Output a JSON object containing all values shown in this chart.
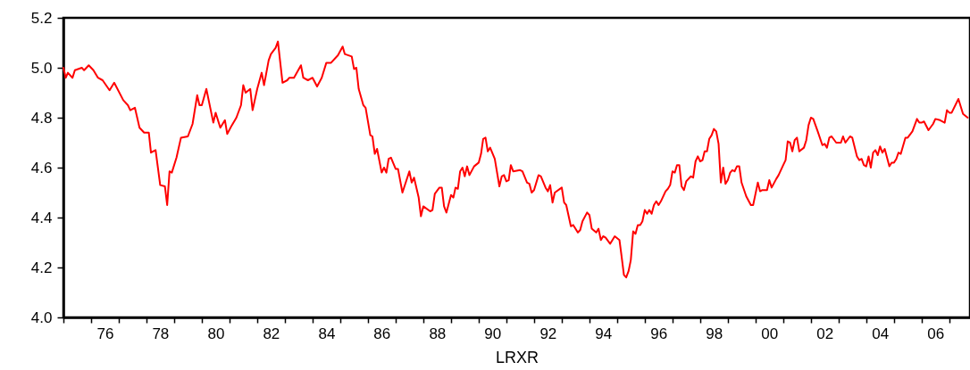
{
  "chart_data": {
    "type": "line",
    "xlabel": "LRXR",
    "grid": false,
    "marker": "none",
    "line_style": "solid",
    "xlim": [
      "1975-01",
      "2007-10"
    ],
    "ylim": [
      4.0,
      5.2
    ],
    "yticks": [
      {
        "value": 4.0,
        "label": "4.0"
      },
      4.2,
      4.4,
      4.6,
      4.8,
      {
        "value": 5.0,
        "label": "5.0"
      },
      5.2
    ],
    "xticks": [
      {
        "value": "1975-01",
        "label": null
      },
      {
        "value": "1976-01",
        "label": null
      },
      {
        "value": "1976-07",
        "label": "76"
      },
      {
        "value": "1977-01",
        "label": null
      },
      {
        "value": "1978-01",
        "label": null
      },
      {
        "value": "1978-07",
        "label": "78"
      },
      {
        "value": "1979-01",
        "label": null
      },
      {
        "value": "1980-01",
        "label": null
      },
      {
        "value": "1980-07",
        "label": "80"
      },
      {
        "value": "1981-01",
        "label": null
      },
      {
        "value": "1982-01",
        "label": null
      },
      {
        "value": "1982-07",
        "label": "82"
      },
      {
        "value": "1983-01",
        "label": null
      },
      {
        "value": "1984-01",
        "label": null
      },
      {
        "value": "1984-07",
        "label": "84"
      },
      {
        "value": "1985-01",
        "label": null
      },
      {
        "value": "1986-01",
        "label": null
      },
      {
        "value": "1986-07",
        "label": "86"
      },
      {
        "value": "1987-01",
        "label": null
      },
      {
        "value": "1988-01",
        "label": null
      },
      {
        "value": "1988-07",
        "label": "88"
      },
      {
        "value": "1989-01",
        "label": null
      },
      {
        "value": "1990-01",
        "label": null
      },
      {
        "value": "1990-07",
        "label": "90"
      },
      {
        "value": "1991-01",
        "label": null
      },
      {
        "value": "1992-01",
        "label": null
      },
      {
        "value": "1992-07",
        "label": "92"
      },
      {
        "value": "1993-01",
        "label": null
      },
      {
        "value": "1994-01",
        "label": null
      },
      {
        "value": "1994-07",
        "label": "94"
      },
      {
        "value": "1995-01",
        "label": null
      },
      {
        "value": "1996-01",
        "label": null
      },
      {
        "value": "1996-07",
        "label": "96"
      },
      {
        "value": "1997-01",
        "label": null
      },
      {
        "value": "1998-01",
        "label": null
      },
      {
        "value": "1998-07",
        "label": "98"
      },
      {
        "value": "1999-01",
        "label": null
      },
      {
        "value": "2000-01",
        "label": null
      },
      {
        "value": "2000-07",
        "label": "00"
      },
      {
        "value": "2001-01",
        "label": null
      },
      {
        "value": "2002-01",
        "label": null
      },
      {
        "value": "2002-07",
        "label": "02"
      },
      {
        "value": "2003-01",
        "label": null
      },
      {
        "value": "2004-01",
        "label": null
      },
      {
        "value": "2004-07",
        "label": "04"
      },
      {
        "value": "2005-01",
        "label": null
      },
      {
        "value": "2006-01",
        "label": null
      },
      {
        "value": "2006-07",
        "label": "06"
      },
      {
        "value": "2007-01",
        "label": null
      }
    ],
    "x": [
      "1975-01",
      "1975-02",
      "1975-03",
      "1975-05",
      "1975-06",
      "1975-09",
      "1975-10",
      "1975-12",
      "1976-02",
      "1976-04",
      "1976-06",
      "1976-09",
      "1976-11",
      "1977-03",
      "1977-05",
      "1977-06",
      "1977-08",
      "1977-10",
      "1977-12",
      "1978-02",
      "1978-03",
      "1978-05",
      "1978-07",
      "1978-09",
      "1978-10",
      "1978-11",
      "1978-12",
      "1979-02",
      "1979-04",
      "1979-07",
      "1979-09",
      "1979-11",
      "1979-12",
      "1980-01",
      "1980-03",
      "1980-06",
      "1980-07",
      "1980-09",
      "1980-11",
      "1980-12",
      "1981-02",
      "1981-04",
      "1981-06",
      "1981-07",
      "1981-08",
      "1981-10",
      "1981-11",
      "1982-01",
      "1982-03",
      "1982-04",
      "1982-06",
      "1982-07",
      "1982-09",
      "1982-10",
      "1982-12",
      "1983-02",
      "1983-03",
      "1983-05",
      "1983-08",
      "1983-09",
      "1983-11",
      "1984-01",
      "1984-03",
      "1984-05",
      "1984-07",
      "1984-09",
      "1984-12",
      "1985-02",
      "1985-03",
      "1985-06",
      "1985-07",
      "1985-08",
      "1985-09",
      "1985-11",
      "1985-12",
      "1986-02",
      "1986-03",
      "1986-04",
      "1986-05",
      "1986-07",
      "1986-08",
      "1986-09",
      "1986-10",
      "1986-11",
      "1987-01",
      "1987-02",
      "1987-04",
      "1987-07",
      "1987-08",
      "1987-09",
      "1987-11",
      "1987-12",
      "1988-01",
      "1988-04",
      "1988-05",
      "1988-06",
      "1988-08",
      "1988-09",
      "1988-10",
      "1988-11",
      "1989-01",
      "1989-02",
      "1989-03",
      "1989-04",
      "1989-05",
      "1989-06",
      "1989-07",
      "1989-08",
      "1989-09",
      "1989-11",
      "1990-01",
      "1990-02",
      "1990-03",
      "1990-04",
      "1990-05",
      "1990-06",
      "1990-08",
      "1990-10",
      "1990-11",
      "1990-12",
      "1991-01",
      "1991-02",
      "1991-03",
      "1991-04",
      "1991-07",
      "1991-08",
      "1991-10",
      "1991-11",
      "1991-12",
      "1992-01",
      "1992-03",
      "1992-04",
      "1992-06",
      "1992-07",
      "1992-08",
      "1992-09",
      "1992-10",
      "1993-01",
      "1993-02",
      "1993-03",
      "1993-05",
      "1993-06",
      "1993-08",
      "1993-09",
      "1993-10",
      "1993-12",
      "1994-01",
      "1994-02",
      "1994-04",
      "1994-05",
      "1994-06",
      "1994-07",
      "1994-08",
      "1994-10",
      "1994-12",
      "1995-02",
      "1995-03",
      "1995-04",
      "1995-05",
      "1995-06",
      "1995-07",
      "1995-08",
      "1995-09",
      "1995-10",
      "1995-11",
      "1995-12",
      "1996-01",
      "1996-02",
      "1996-03",
      "1996-04",
      "1996-05",
      "1996-06",
      "1996-07",
      "1996-08",
      "1996-10",
      "1996-11",
      "1996-12",
      "1997-01",
      "1997-02",
      "1997-03",
      "1997-04",
      "1997-05",
      "1997-06",
      "1997-07",
      "1997-09",
      "1997-10",
      "1997-11",
      "1997-12",
      "1998-01",
      "1998-02",
      "1998-03",
      "1998-04",
      "1998-05",
      "1998-06",
      "1998-07",
      "1998-08",
      "1998-09",
      "1998-10",
      "1998-11",
      "1998-12",
      "1999-01",
      "1999-02",
      "1999-03",
      "1999-04",
      "1999-05",
      "1999-06",
      "1999-07",
      "1999-09",
      "1999-11",
      "1999-12",
      "2000-01",
      "2000-02",
      "2000-03",
      "2000-04",
      "2000-06",
      "2000-07",
      "2000-08",
      "2000-10",
      "2000-11",
      "2001-01",
      "2001-02",
      "2001-03",
      "2001-04",
      "2001-05",
      "2001-06",
      "2001-07",
      "2001-08",
      "2001-10",
      "2001-11",
      "2001-12",
      "2002-01",
      "2002-02",
      "2002-04",
      "2002-06",
      "2002-07",
      "2002-08",
      "2002-09",
      "2002-10",
      "2002-12",
      "2003-02",
      "2003-03",
      "2003-04",
      "2003-06",
      "2003-07",
      "2003-09",
      "2003-10",
      "2003-11",
      "2003-12",
      "2004-01",
      "2004-02",
      "2004-03",
      "2004-04",
      "2004-05",
      "2004-06",
      "2004-07",
      "2004-08",
      "2004-09",
      "2004-11",
      "2004-12",
      "2005-01",
      "2005-02",
      "2005-03",
      "2005-04",
      "2005-06",
      "2005-07",
      "2005-09",
      "2005-11",
      "2005-12",
      "2006-01",
      "2006-02",
      "2006-04",
      "2006-06",
      "2006-07",
      "2006-09",
      "2006-11",
      "2006-12",
      "2007-01",
      "2007-02",
      "2007-05",
      "2007-07",
      "2007-09"
    ],
    "series": [
      {
        "color": "#ff0000",
        "values": [
          5.0,
          4.96,
          4.98,
          4.96,
          4.99,
          5.0,
          4.99,
          5.01,
          4.99,
          4.96,
          4.95,
          4.91,
          4.94,
          4.87,
          4.85,
          4.83,
          4.84,
          4.76,
          4.74,
          4.74,
          4.66,
          4.67,
          4.53,
          4.525,
          4.45,
          4.585,
          4.58,
          4.64,
          4.72,
          4.725,
          4.775,
          4.89,
          4.85,
          4.85,
          4.915,
          4.78,
          4.82,
          4.76,
          4.79,
          4.735,
          4.77,
          4.8,
          4.85,
          4.93,
          4.9,
          4.915,
          4.83,
          4.915,
          4.98,
          4.93,
          5.03,
          5.055,
          5.08,
          5.105,
          4.94,
          4.95,
          4.96,
          4.96,
          5.01,
          4.96,
          4.95,
          4.96,
          4.925,
          4.96,
          5.02,
          5.02,
          5.05,
          5.085,
          5.055,
          5.045,
          4.995,
          5.0,
          4.915,
          4.85,
          4.84,
          4.73,
          4.725,
          4.655,
          4.675,
          4.58,
          4.6,
          4.58,
          4.635,
          4.64,
          4.595,
          4.595,
          4.5,
          4.585,
          4.54,
          4.56,
          4.48,
          4.405,
          4.445,
          4.425,
          4.43,
          4.495,
          4.52,
          4.52,
          4.445,
          4.42,
          4.49,
          4.48,
          4.52,
          4.515,
          4.585,
          4.6,
          4.565,
          4.605,
          4.57,
          4.605,
          4.62,
          4.655,
          4.715,
          4.72,
          4.665,
          4.68,
          4.635,
          4.525,
          4.565,
          4.57,
          4.545,
          4.55,
          4.61,
          4.585,
          4.59,
          4.585,
          4.54,
          4.535,
          4.5,
          4.51,
          4.57,
          4.565,
          4.52,
          4.505,
          4.53,
          4.46,
          4.5,
          4.52,
          4.46,
          4.45,
          4.365,
          4.37,
          4.34,
          4.35,
          4.385,
          4.42,
          4.41,
          4.355,
          4.34,
          4.355,
          4.31,
          4.325,
          4.32,
          4.295,
          4.325,
          4.31,
          4.245,
          4.17,
          4.16,
          4.185,
          4.23,
          4.345,
          4.335,
          4.37,
          4.37,
          4.385,
          4.43,
          4.415,
          4.43,
          4.415,
          4.45,
          4.465,
          4.45,
          4.465,
          4.505,
          4.515,
          4.53,
          4.585,
          4.58,
          4.61,
          4.61,
          4.525,
          4.51,
          4.545,
          4.565,
          4.56,
          4.625,
          4.645,
          4.625,
          4.63,
          4.665,
          4.665,
          4.715,
          4.73,
          4.755,
          4.745,
          4.695,
          4.54,
          4.6,
          4.535,
          4.55,
          4.58,
          4.59,
          4.585,
          4.605,
          4.605,
          4.54,
          4.485,
          4.45,
          4.45,
          4.495,
          4.54,
          4.505,
          4.51,
          4.51,
          4.55,
          4.52,
          4.555,
          4.57,
          4.61,
          4.63,
          4.705,
          4.7,
          4.665,
          4.71,
          4.72,
          4.665,
          4.68,
          4.71,
          4.77,
          4.8,
          4.795,
          4.745,
          4.69,
          4.695,
          4.68,
          4.72,
          4.725,
          4.7,
          4.7,
          4.725,
          4.7,
          4.725,
          4.72,
          4.645,
          4.63,
          4.635,
          4.61,
          4.605,
          4.645,
          4.6,
          4.66,
          4.67,
          4.65,
          4.685,
          4.66,
          4.675,
          4.605,
          4.62,
          4.62,
          4.635,
          4.66,
          4.655,
          4.72,
          4.72,
          4.745,
          4.795,
          4.78,
          4.78,
          4.785,
          4.75,
          4.775,
          4.795,
          4.79,
          4.78,
          4.83,
          4.82,
          4.82,
          4.875,
          4.815,
          4.8
        ]
      }
    ]
  }
}
